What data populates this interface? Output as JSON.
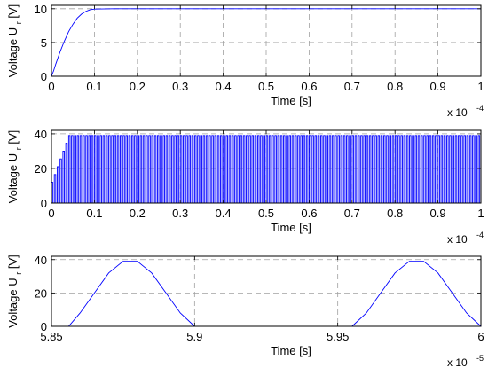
{
  "chart_data": [
    {
      "type": "line",
      "title": "",
      "xlabel": "Time [s]",
      "ylabel": "Voltage U",
      "ylabel_sub": "r",
      "ylabel_unit": "[V]",
      "x_multiplier": "x 10",
      "x_exponent": "-4",
      "xlim": [
        0,
        1
      ],
      "ylim": [
        0,
        10.5
      ],
      "xticks": [
        0,
        0.1,
        0.2,
        0.3,
        0.4,
        0.5,
        0.6,
        0.7,
        0.8,
        0.9,
        1
      ],
      "xtick_labels": [
        "0",
        "0.1",
        "0.2",
        "0.3",
        "0.4",
        "0.5",
        "0.6",
        "0.7",
        "0.8",
        "0.9",
        "1"
      ],
      "yticks": [
        0,
        5,
        10
      ],
      "ytick_labels": [
        "0",
        "5",
        "10"
      ],
      "grid": true,
      "line_color": "#0000ff",
      "series": [
        {
          "x": [
            0,
            0.005,
            0.01,
            0.02,
            0.03,
            0.04,
            0.05,
            0.06,
            0.07,
            0.08,
            0.09,
            0.1,
            0.15,
            0.2,
            0.3,
            0.4,
            0.5,
            0.6,
            0.7,
            0.8,
            0.9,
            1.0
          ],
          "y": [
            0,
            0.8,
            1.8,
            3.6,
            5.2,
            6.6,
            7.7,
            8.6,
            9.2,
            9.6,
            9.85,
            9.95,
            10,
            10,
            10,
            10,
            10,
            10,
            10,
            10,
            10,
            10
          ]
        }
      ]
    },
    {
      "type": "line",
      "title": "",
      "xlabel": "Time [s]",
      "ylabel": "Voltage U",
      "ylabel_sub": "r",
      "ylabel_unit": "[V]",
      "x_multiplier": "x 10",
      "x_exponent": "-4",
      "xlim": [
        0,
        1
      ],
      "ylim": [
        0,
        42
      ],
      "xticks": [
        0,
        0.1,
        0.2,
        0.3,
        0.4,
        0.5,
        0.6,
        0.7,
        0.8,
        0.9,
        1
      ],
      "xtick_labels": [
        "0",
        "0.1",
        "0.2",
        "0.3",
        "0.4",
        "0.5",
        "0.6",
        "0.7",
        "0.8",
        "0.9",
        "1"
      ],
      "yticks": [
        0,
        20,
        40
      ],
      "ytick_labels": [
        "0",
        "20",
        "40"
      ],
      "grid": true,
      "line_color": "#0000ff",
      "series": [
        {
          "pulse_period": 0.00667,
          "pulse_on_fraction": 0.5,
          "amplitude_start": 12,
          "amplitude_steady": 39,
          "ramp_end": 0.04
        }
      ]
    },
    {
      "type": "line",
      "title": "",
      "xlabel": "Time [s]",
      "ylabel": "Voltage U",
      "ylabel_sub": "r",
      "ylabel_unit": "[V]",
      "x_multiplier": "x 10",
      "x_exponent": "-5",
      "xlim": [
        5.85,
        6.0
      ],
      "ylim": [
        0,
        42
      ],
      "xticks": [
        5.85,
        5.9,
        5.95,
        6.0
      ],
      "xtick_labels": [
        "5.85",
        "5.9",
        "5.95",
        "6"
      ],
      "yticks": [
        0,
        20,
        40
      ],
      "ytick_labels": [
        "0",
        "20",
        "40"
      ],
      "grid": true,
      "line_color": "#0000ff",
      "series": [
        {
          "x": [
            5.85,
            5.856,
            5.86,
            5.865,
            5.87,
            5.875,
            5.88,
            5.885,
            5.89,
            5.895,
            5.9,
            5.925,
            5.95,
            5.955,
            5.96,
            5.965,
            5.97,
            5.975,
            5.98,
            5.985,
            5.99,
            5.995,
            6.0
          ],
          "y": [
            0,
            0,
            8,
            20,
            32,
            39,
            39,
            32,
            20,
            8,
            0,
            0,
            0,
            0,
            8,
            20,
            32,
            39,
            39,
            32,
            20,
            8,
            0
          ]
        }
      ]
    }
  ]
}
